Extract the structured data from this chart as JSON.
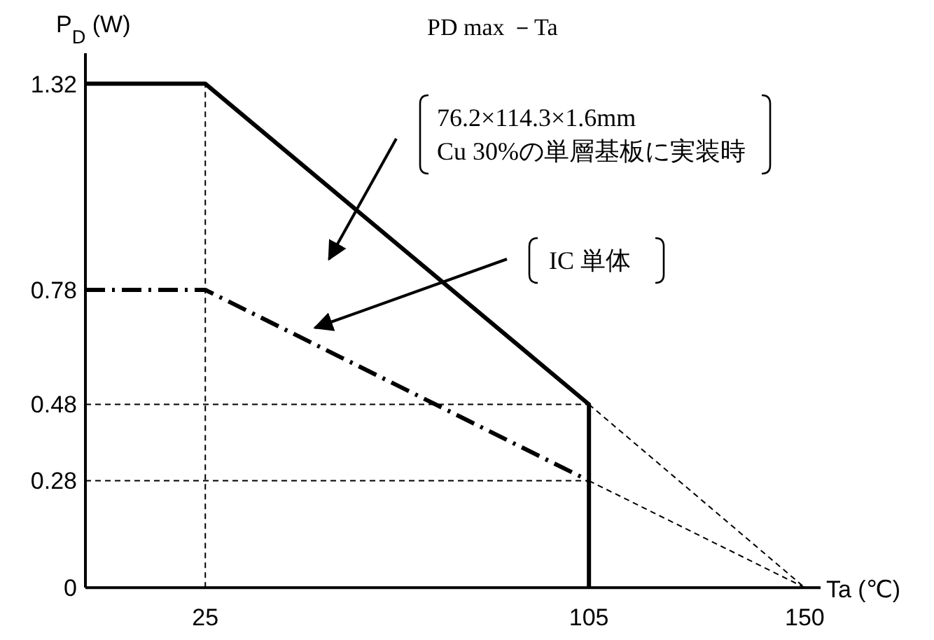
{
  "chart_data": {
    "type": "line",
    "title": "PD max －Ta",
    "xlabel": "Ta (℃)",
    "ylabel": "P$_{D}$ (W)",
    "xlim": [
      0,
      153.3
    ],
    "ylim": [
      0,
      1.4
    ],
    "xticks": [
      25,
      105,
      150
    ],
    "yticks": [
      0,
      0.28,
      0.48,
      0.78,
      1.32
    ],
    "grid": false,
    "marker": "none",
    "series": [
      {
        "color": "#000000",
        "line_style": "solid",
        "x": [
          0,
          25,
          105,
          105
        ],
        "values": [
          1.32,
          1.32,
          0.48,
          0
        ]
      },
      {
        "color": "#000000",
        "line_style": "dashdot",
        "x": [
          0,
          25,
          105
        ],
        "values": [
          0.78,
          0.78,
          0.28
        ]
      },
      {
        "color": "#000000",
        "line_style": "dashed",
        "x": [
          25,
          25
        ],
        "values": [
          0,
          1.32
        ]
      },
      {
        "color": "#000000",
        "line_style": "dashed",
        "x": [
          0,
          105
        ],
        "values": [
          0.48,
          0.48
        ]
      },
      {
        "color": "#000000",
        "line_style": "dashed",
        "x": [
          0,
          105
        ],
        "values": [
          0.28,
          0.28
        ]
      },
      {
        "color": "#000000",
        "line_style": "dashed",
        "x": [
          105,
          150
        ],
        "values": [
          0.48,
          0
        ]
      },
      {
        "color": "#000000",
        "line_style": "dashed",
        "x": [
          105,
          150
        ],
        "values": [
          0.28,
          0
        ]
      }
    ],
    "annotations": [
      "76.2×114.3×1.6mm\nCu 30%の単層基板に実装時",
      "IC 単体"
    ]
  }
}
